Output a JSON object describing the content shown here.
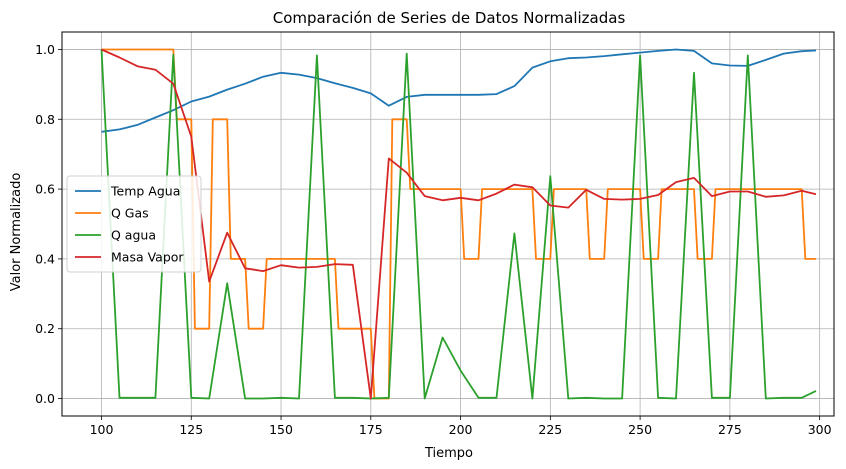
{
  "chart_data": {
    "type": "line",
    "title": "Comparación de Series de Datos Normalizadas",
    "xlabel": "Tiempo",
    "ylabel": "Valor Normalizado",
    "xlim": [
      89,
      304
    ],
    "ylim": [
      -0.05,
      1.05
    ],
    "xticks": [
      100,
      125,
      150,
      175,
      200,
      225,
      250,
      275,
      300
    ],
    "xtick_labels": [
      "100",
      "125",
      "150",
      "175",
      "200",
      "225",
      "250",
      "275",
      "300"
    ],
    "yticks": [
      0.0,
      0.2,
      0.4,
      0.6,
      0.8,
      1.0
    ],
    "ytick_labels": [
      "0.0",
      "0.2",
      "0.4",
      "0.6",
      "0.8",
      "1.0"
    ],
    "grid": true,
    "legend_position": "center-left",
    "series": [
      {
        "name": "Temp Agua",
        "color": "#1f77b4",
        "x": [
          100,
          105,
          110,
          115,
          120,
          125,
          130,
          135,
          140,
          145,
          150,
          155,
          160,
          165,
          170,
          175,
          180,
          185,
          190,
          195,
          200,
          205,
          210,
          215,
          220,
          225,
          230,
          235,
          240,
          245,
          250,
          255,
          260,
          265,
          270,
          275,
          280,
          285,
          290,
          295,
          299
        ],
        "y": [
          0.764,
          0.771,
          0.784,
          0.805,
          0.826,
          0.851,
          0.865,
          0.885,
          0.902,
          0.922,
          0.933,
          0.928,
          0.918,
          0.903,
          0.89,
          0.874,
          0.839,
          0.864,
          0.87,
          0.87,
          0.87,
          0.87,
          0.872,
          0.895,
          0.948,
          0.966,
          0.975,
          0.977,
          0.981,
          0.986,
          0.991,
          0.996,
          1.0,
          0.996,
          0.96,
          0.954,
          0.953,
          0.97,
          0.988,
          0.995,
          0.997
        ]
      },
      {
        "name": "Q Gas",
        "color": "#ff7f0e",
        "x": [
          100,
          105,
          110,
          115,
          120,
          121,
          125,
          126,
          130,
          131,
          135,
          136,
          140,
          141,
          145,
          146,
          150,
          155,
          160,
          165,
          166,
          170,
          175,
          176,
          180,
          181,
          185,
          186,
          190,
          195,
          200,
          201,
          205,
          206,
          210,
          215,
          220,
          221,
          225,
          226,
          230,
          235,
          236,
          240,
          241,
          245,
          250,
          251,
          255,
          256,
          260,
          265,
          266,
          270,
          271,
          275,
          280,
          285,
          290,
          295,
          296,
          299
        ],
        "y": [
          1.0,
          1.0,
          1.0,
          1.0,
          1.0,
          0.8,
          0.8,
          0.2,
          0.2,
          0.8,
          0.8,
          0.4,
          0.4,
          0.2,
          0.2,
          0.4,
          0.4,
          0.4,
          0.4,
          0.4,
          0.2,
          0.2,
          0.2,
          0.0,
          0.0,
          0.8,
          0.8,
          0.6,
          0.6,
          0.6,
          0.6,
          0.4,
          0.4,
          0.6,
          0.6,
          0.6,
          0.6,
          0.4,
          0.4,
          0.6,
          0.6,
          0.6,
          0.4,
          0.4,
          0.6,
          0.6,
          0.6,
          0.4,
          0.4,
          0.6,
          0.6,
          0.6,
          0.4,
          0.4,
          0.6,
          0.6,
          0.6,
          0.6,
          0.6,
          0.6,
          0.4,
          0.4
        ]
      },
      {
        "name": "Q agua",
        "color": "#2ca02c",
        "x": [
          100,
          105,
          110,
          115,
          120,
          125,
          130,
          135,
          140,
          145,
          150,
          155,
          160,
          165,
          170,
          175,
          180,
          185,
          190,
          195,
          200,
          205,
          210,
          215,
          220,
          225,
          230,
          235,
          240,
          245,
          250,
          255,
          260,
          265,
          270,
          275,
          280,
          285,
          290,
          295,
          299
        ],
        "y": [
          1.0,
          0.002,
          0.002,
          0.002,
          0.985,
          0.002,
          0.0,
          0.33,
          0.0,
          0.0,
          0.002,
          0.0,
          0.983,
          0.002,
          0.002,
          0.0,
          0.002,
          0.988,
          0.0,
          0.175,
          0.08,
          0.002,
          0.002,
          0.473,
          0.0,
          0.637,
          0.0,
          0.002,
          0.0,
          0.0,
          0.983,
          0.002,
          0.0,
          0.933,
          0.002,
          0.002,
          0.983,
          0.0,
          0.002,
          0.002,
          0.022
        ]
      },
      {
        "name": "Masa Vapor",
        "color": "#d62728",
        "x": [
          100,
          105,
          110,
          115,
          120,
          125,
          130,
          135,
          140,
          145,
          150,
          155,
          160,
          165,
          170,
          175,
          180,
          185,
          190,
          195,
          200,
          205,
          210,
          215,
          220,
          225,
          230,
          235,
          240,
          245,
          250,
          255,
          260,
          265,
          270,
          275,
          280,
          285,
          290,
          295,
          299
        ],
        "y": [
          1.0,
          0.977,
          0.952,
          0.942,
          0.902,
          0.75,
          0.335,
          0.475,
          0.373,
          0.365,
          0.382,
          0.375,
          0.377,
          0.385,
          0.383,
          0.0,
          0.688,
          0.647,
          0.58,
          0.568,
          0.575,
          0.568,
          0.587,
          0.613,
          0.605,
          0.553,
          0.547,
          0.598,
          0.572,
          0.57,
          0.572,
          0.583,
          0.62,
          0.632,
          0.58,
          0.593,
          0.593,
          0.578,
          0.582,
          0.595,
          0.585
        ]
      }
    ]
  }
}
